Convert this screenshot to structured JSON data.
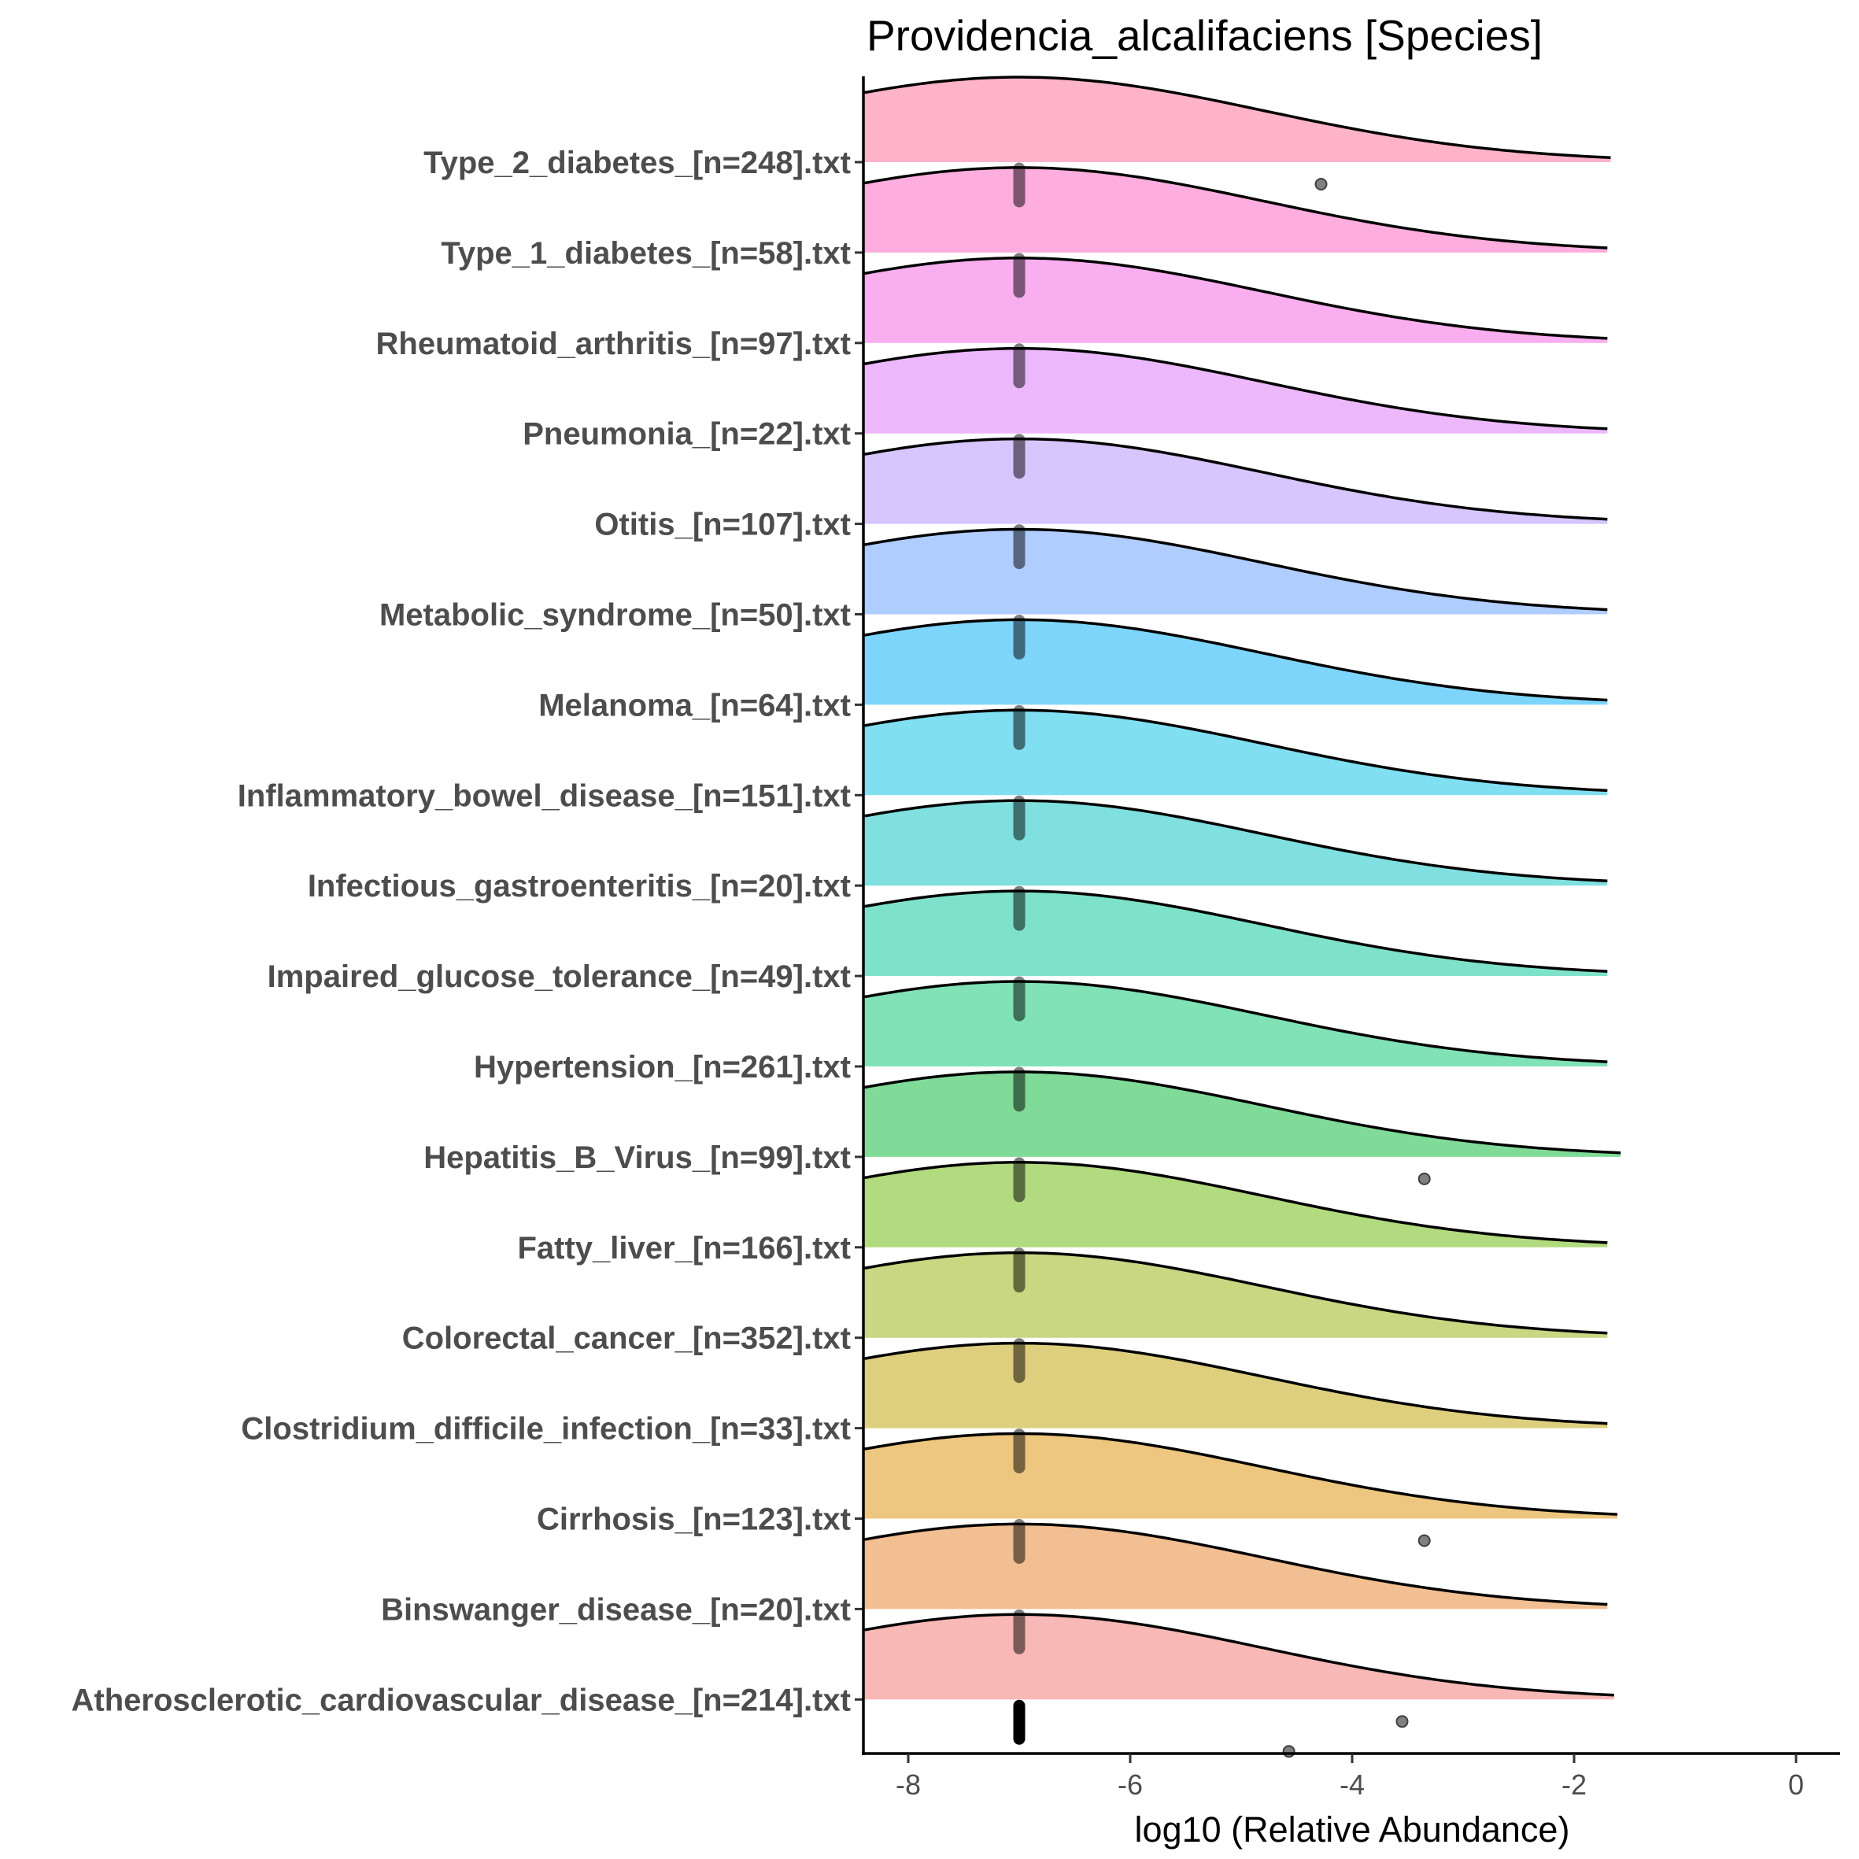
{
  "chart_data": {
    "type": "ridgeline",
    "title": "Providencia_alcalifaciens [Species]",
    "xlabel": "log10 (Relative Abundance)",
    "ylabel": "",
    "xlim": [
      -8.4,
      0.4
    ],
    "xticks": [
      -8,
      -6,
      -4,
      -2,
      0
    ],
    "xtick_labels": [
      "-8",
      "-6",
      "-4",
      "-2",
      "0"
    ],
    "grid": false,
    "legend": "none",
    "series": [
      {
        "name": "Type_2_diabetes_[n=248].txt",
        "color": "#FFB3C9",
        "mode": -7,
        "sd": 2.2,
        "x_end": -1.67,
        "points_x": -7,
        "outliers": [
          -4.28
        ]
      },
      {
        "name": "Type_1_diabetes_[n=58].txt",
        "color": "#FDAEDE",
        "mode": -7,
        "sd": 2.2,
        "x_end": -1.7,
        "points_x": -7,
        "outliers": []
      },
      {
        "name": "Rheumatoid_arthritis_[n=97].txt",
        "color": "#F9AEEF",
        "mode": -7,
        "sd": 2.2,
        "x_end": -1.7,
        "points_x": -7,
        "outliers": []
      },
      {
        "name": "Pneumonia_[n=22].txt",
        "color": "#ECB8FB",
        "mode": -7,
        "sd": 2.2,
        "x_end": -1.7,
        "points_x": -7,
        "outliers": []
      },
      {
        "name": "Otitis_[n=107].txt",
        "color": "#D7C5FD",
        "mode": -7,
        "sd": 2.2,
        "x_end": -1.7,
        "points_x": -7,
        "outliers": []
      },
      {
        "name": "Metabolic_syndrome_[n=50].txt",
        "color": "#B0CDFF",
        "mode": -7,
        "sd": 2.2,
        "x_end": -1.7,
        "points_x": -7,
        "outliers": []
      },
      {
        "name": "Melanoma_[n=64].txt",
        "color": "#7DD5FB",
        "mode": -7,
        "sd": 2.2,
        "x_end": -1.7,
        "points_x": -7,
        "outliers": []
      },
      {
        "name": "Inflammatory_bowel_disease_[n=151].txt",
        "color": "#80DFF0",
        "mode": -7,
        "sd": 2.2,
        "x_end": -1.7,
        "points_x": -7,
        "outliers": []
      },
      {
        "name": "Infectious_gastroenteritis_[n=20].txt",
        "color": "#80E0E0",
        "mode": -7,
        "sd": 2.2,
        "x_end": -1.7,
        "points_x": -7,
        "outliers": []
      },
      {
        "name": "Impaired_glucose_tolerance_[n=49].txt",
        "color": "#7EE2CA",
        "mode": -7,
        "sd": 2.2,
        "x_end": -1.7,
        "points_x": -7,
        "outliers": []
      },
      {
        "name": "Hypertension_[n=261].txt",
        "color": "#80E2B5",
        "mode": -7,
        "sd": 2.2,
        "x_end": -1.7,
        "points_x": -7,
        "outliers": []
      },
      {
        "name": "Hepatitis_B_Virus_[n=99].txt",
        "color": "#80DB98",
        "mode": -7,
        "sd": 2.2,
        "x_end": -1.58,
        "points_x": -7,
        "outliers": [
          -3.35
        ]
      },
      {
        "name": "Fatty_liver_[n=166].txt",
        "color": "#B2DA7F",
        "mode": -7,
        "sd": 2.2,
        "x_end": -1.7,
        "points_x": -7,
        "outliers": []
      },
      {
        "name": "Colorectal_cancer_[n=352].txt",
        "color": "#C9D682",
        "mode": -7,
        "sd": 2.2,
        "x_end": -1.7,
        "points_x": -7,
        "outliers": []
      },
      {
        "name": "Clostridium_difficile_infection_[n=33].txt",
        "color": "#DECF7E",
        "mode": -7,
        "sd": 2.2,
        "x_end": -1.7,
        "points_x": -7,
        "outliers": []
      },
      {
        "name": "Cirrhosis_[n=123].txt",
        "color": "#EDC77F",
        "mode": -7,
        "sd": 2.2,
        "x_end": -1.61,
        "points_x": -7,
        "outliers": [
          -3.35
        ]
      },
      {
        "name": "Binswanger_disease_[n=20].txt",
        "color": "#F1BF91",
        "mode": -7,
        "sd": 2.2,
        "x_end": -1.7,
        "points_x": -7,
        "outliers": []
      },
      {
        "name": "Atherosclerotic_cardiovascular_disease_[n=214].txt",
        "color": "#F8B8B6",
        "mode": -7,
        "sd": 2.2,
        "x_end": -1.64,
        "points_x": -7,
        "outliers": [
          -3.55,
          -4.57
        ]
      }
    ]
  }
}
